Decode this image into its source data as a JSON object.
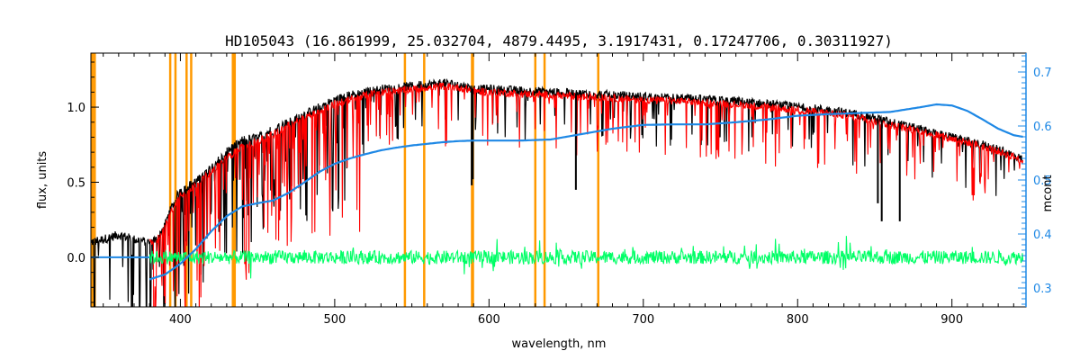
{
  "chart_data": {
    "type": "line",
    "title": "HD105043    (16.861999, 25.032704, 4879.4495, 3.1917431, 0.17247706, 0.30311927)",
    "xlabel": "wavelength, nm",
    "ylabel": "flux, units",
    "y2label": "mcont",
    "xlim": [
      342,
      948
    ],
    "ylim": [
      -0.33,
      1.36
    ],
    "y2lim": [
      0.265,
      0.735
    ],
    "x_ticks": [
      400,
      500,
      600,
      700,
      800,
      900
    ],
    "y_ticks": [
      "0.0",
      "0.5",
      "1.0"
    ],
    "y_tick_values": [
      0.0,
      0.5,
      1.0
    ],
    "y2_ticks": [
      "0.3",
      "0.4",
      "0.5",
      "0.6",
      "0.7"
    ],
    "y2_tick_values": [
      0.3,
      0.4,
      0.5,
      0.6,
      0.7
    ],
    "colors": {
      "observed": "#000000",
      "model": "#ff0000",
      "residual": "#00ff66",
      "continuum": "#1e88e5",
      "line_markers": "#ff9900",
      "right_axis": "#1e88e5"
    },
    "vertical_lines_nm": [
      343,
      344.5,
      393.4,
      396.8,
      404.0,
      407.0,
      434.0,
      435.2,
      545.5,
      558.0,
      589.0,
      589.6,
      630.0,
      636.0,
      670.8
    ],
    "series": [
      {
        "id": "observed",
        "x": [
          342,
          350,
          360,
          370,
          380,
          385,
          390,
          395,
          400,
          410,
          420,
          430,
          440,
          450,
          460,
          470,
          480,
          490,
          500,
          510,
          520,
          530,
          540,
          550,
          560,
          570,
          580,
          590,
          600,
          620,
          640,
          660,
          680,
          700,
          720,
          740,
          760,
          780,
          800,
          820,
          840,
          860,
          880,
          900,
          920,
          940,
          946
        ],
        "y": [
          0.1,
          0.12,
          0.15,
          0.12,
          0.1,
          0.12,
          0.22,
          0.35,
          0.45,
          0.5,
          0.6,
          0.7,
          0.78,
          0.8,
          0.85,
          0.9,
          0.95,
          1.0,
          1.05,
          1.08,
          1.1,
          1.12,
          1.13,
          1.14,
          1.15,
          1.16,
          1.15,
          1.12,
          1.12,
          1.11,
          1.1,
          1.09,
          1.08,
          1.07,
          1.06,
          1.05,
          1.04,
          1.02,
          1.0,
          0.98,
          0.95,
          0.9,
          0.85,
          0.8,
          0.75,
          0.68,
          0.65
        ]
      },
      {
        "id": "model",
        "x": [
          380,
          385,
          390,
          395,
          400,
          410,
          420,
          430,
          440,
          450,
          460,
          470,
          480,
          490,
          500,
          510,
          520,
          530,
          540,
          550,
          560,
          570,
          580,
          590,
          600,
          620,
          640,
          660,
          680,
          700,
          720,
          740,
          760,
          780,
          800,
          820,
          840,
          860,
          880,
          900,
          920,
          940,
          946
        ],
        "y": [
          0.1,
          0.12,
          0.2,
          0.33,
          0.42,
          0.48,
          0.57,
          0.66,
          0.74,
          0.77,
          0.82,
          0.88,
          0.93,
          0.98,
          1.02,
          1.05,
          1.08,
          1.1,
          1.11,
          1.12,
          1.13,
          1.14,
          1.13,
          1.11,
          1.1,
          1.09,
          1.08,
          1.07,
          1.06,
          1.05,
          1.04,
          1.03,
          1.02,
          1.0,
          0.98,
          0.96,
          0.93,
          0.88,
          0.84,
          0.79,
          0.74,
          0.67,
          0.64
        ]
      },
      {
        "id": "continuum",
        "axis": "right",
        "x": [
          380,
          390,
          400,
          410,
          420,
          430,
          440,
          450,
          460,
          470,
          480,
          490,
          500,
          510,
          520,
          530,
          540,
          550,
          560,
          570,
          580,
          590,
          600,
          620,
          640,
          660,
          680,
          700,
          720,
          740,
          760,
          780,
          800,
          820,
          840,
          860,
          880,
          890,
          900,
          910,
          920,
          930,
          940,
          946
        ],
        "y": [
          0.316,
          0.325,
          0.345,
          0.372,
          0.405,
          0.433,
          0.451,
          0.457,
          0.462,
          0.476,
          0.495,
          0.515,
          0.53,
          0.54,
          0.548,
          0.555,
          0.56,
          0.564,
          0.567,
          0.57,
          0.572,
          0.573,
          0.573,
          0.573,
          0.575,
          0.585,
          0.595,
          0.602,
          0.603,
          0.603,
          0.607,
          0.612,
          0.619,
          0.622,
          0.624,
          0.626,
          0.635,
          0.64,
          0.638,
          0.628,
          0.612,
          0.595,
          0.583,
          0.58
        ]
      },
      {
        "id": "residual",
        "x_range": [
          380,
          946
        ],
        "baseline": 0.0
      }
    ]
  }
}
